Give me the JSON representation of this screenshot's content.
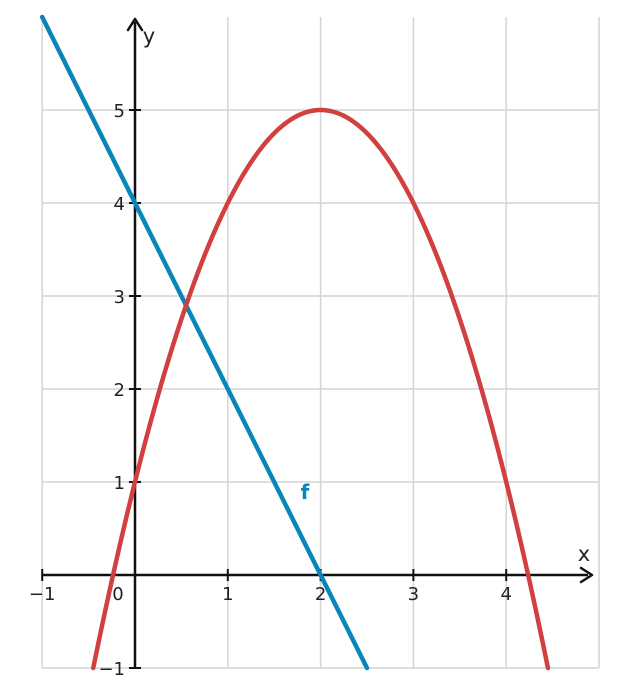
{
  "chart_data": {
    "type": "line",
    "title": "",
    "xlabel": "x",
    "ylabel": "y",
    "xlim": [
      -1,
      5
    ],
    "ylim": [
      -1,
      6
    ],
    "grid": true,
    "x_ticks": [
      {
        "value": -1,
        "label": "−1"
      },
      {
        "value": 0,
        "label": "0"
      },
      {
        "value": 1,
        "label": "1"
      },
      {
        "value": 2,
        "label": "2"
      },
      {
        "value": 3,
        "label": "3"
      },
      {
        "value": 4,
        "label": "4"
      }
    ],
    "y_ticks": [
      {
        "value": -1,
        "label": "−1"
      },
      {
        "value": 1,
        "label": "1"
      },
      {
        "value": 2,
        "label": "2"
      },
      {
        "value": 3,
        "label": "3"
      },
      {
        "value": 4,
        "label": "4"
      },
      {
        "value": 5,
        "label": "5"
      }
    ],
    "series": [
      {
        "name": "f",
        "color": "#0a85b8",
        "x": [
          -1,
          0,
          1,
          2,
          2.5
        ],
        "y": [
          6,
          4,
          2,
          0,
          -1
        ]
      },
      {
        "color": "#d13f3f",
        "x": [
          -0.45,
          -0.25,
          0,
          0.5,
          1,
          1.5,
          2,
          2.5,
          3,
          3.5,
          4,
          4.25,
          4.45
        ],
        "y": [
          -1.0,
          -0.0625,
          1,
          2.75,
          4,
          4.75,
          5,
          4.75,
          4,
          2.75,
          1,
          0.0625,
          -1.0
        ]
      }
    ]
  }
}
